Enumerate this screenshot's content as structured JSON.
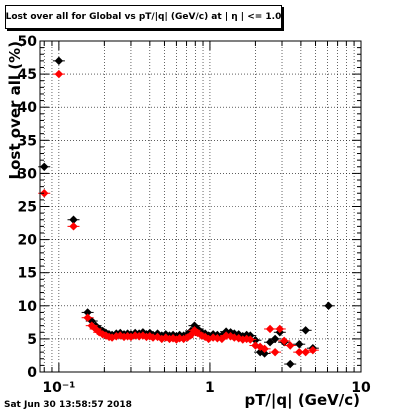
{
  "chart_data": {
    "type": "scatter",
    "title": "Lost over all for Global vs pT/|q| (GeV/c) at | η | <= 1.0",
    "xlabel": "pT/|q| (GeV/c)",
    "ylabel": "Lost over all (%)",
    "xscale": "log",
    "xlim": [
      0.075,
      10
    ],
    "ylim": [
      0,
      50
    ],
    "grid": true,
    "x_tick_labels": [
      "10⁻¹",
      "1",
      "10"
    ],
    "x_tick_values": [
      0.1,
      1,
      10
    ],
    "y_ticks": [
      0,
      5,
      10,
      15,
      20,
      25,
      30,
      35,
      40,
      45,
      50
    ],
    "series": [
      {
        "color": "#000000",
        "marker": "diamond",
        "points": [
          [
            0.08,
            31.0
          ],
          [
            0.1,
            47.0
          ],
          [
            0.125,
            23.0
          ],
          [
            0.155,
            9.0
          ],
          [
            0.165,
            7.7
          ],
          [
            0.175,
            7.0
          ],
          [
            0.185,
            6.5
          ],
          [
            0.195,
            6.2
          ],
          [
            0.205,
            5.9
          ],
          [
            0.215,
            5.7
          ],
          [
            0.225,
            5.6
          ],
          [
            0.24,
            5.8
          ],
          [
            0.255,
            5.9
          ],
          [
            0.27,
            5.7
          ],
          [
            0.285,
            5.8
          ],
          [
            0.3,
            5.7
          ],
          [
            0.32,
            5.9
          ],
          [
            0.34,
            5.8
          ],
          [
            0.36,
            6.0
          ],
          [
            0.38,
            5.7
          ],
          [
            0.4,
            5.9
          ],
          [
            0.42,
            5.6
          ],
          [
            0.45,
            5.8
          ],
          [
            0.48,
            5.5
          ],
          [
            0.51,
            5.7
          ],
          [
            0.54,
            5.5
          ],
          [
            0.57,
            5.6
          ],
          [
            0.6,
            5.4
          ],
          [
            0.63,
            5.6
          ],
          [
            0.67,
            5.5
          ],
          [
            0.71,
            5.7
          ],
          [
            0.75,
            6.2
          ],
          [
            0.79,
            7.0
          ],
          [
            0.83,
            6.5
          ],
          [
            0.88,
            6.0
          ],
          [
            0.93,
            5.8
          ],
          [
            0.98,
            5.5
          ],
          [
            1.05,
            5.7
          ],
          [
            1.12,
            5.6
          ],
          [
            1.2,
            5.5
          ],
          [
            1.28,
            6.1
          ],
          [
            1.37,
            6.0
          ],
          [
            1.45,
            5.8
          ],
          [
            1.55,
            5.7
          ],
          [
            1.65,
            5.4
          ],
          [
            1.75,
            5.6
          ],
          [
            1.85,
            5.5
          ],
          [
            2.0,
            4.8
          ],
          [
            2.15,
            3.0
          ],
          [
            2.3,
            2.8
          ],
          [
            2.5,
            4.5
          ],
          [
            2.7,
            5.0
          ],
          [
            2.9,
            6.0
          ],
          [
            3.1,
            4.5
          ],
          [
            3.4,
            1.2
          ],
          [
            3.9,
            4.2
          ],
          [
            4.3,
            6.3
          ],
          [
            4.8,
            3.6
          ],
          [
            6.1,
            10.0
          ]
        ]
      },
      {
        "color": "#ff0000",
        "marker": "diamond",
        "points": [
          [
            0.08,
            27.0
          ],
          [
            0.1,
            45.0
          ],
          [
            0.125,
            22.0
          ],
          [
            0.155,
            8.2
          ],
          [
            0.165,
            7.0
          ],
          [
            0.175,
            6.5
          ],
          [
            0.185,
            6.0
          ],
          [
            0.195,
            5.7
          ],
          [
            0.205,
            5.5
          ],
          [
            0.215,
            5.3
          ],
          [
            0.225,
            5.2
          ],
          [
            0.24,
            5.4
          ],
          [
            0.255,
            5.5
          ],
          [
            0.27,
            5.3
          ],
          [
            0.285,
            5.4
          ],
          [
            0.3,
            5.3
          ],
          [
            0.32,
            5.5
          ],
          [
            0.34,
            5.4
          ],
          [
            0.36,
            5.5
          ],
          [
            0.38,
            5.3
          ],
          [
            0.4,
            5.4
          ],
          [
            0.42,
            5.2
          ],
          [
            0.45,
            5.3
          ],
          [
            0.48,
            5.0
          ],
          [
            0.51,
            5.2
          ],
          [
            0.54,
            5.0
          ],
          [
            0.57,
            5.1
          ],
          [
            0.6,
            4.9
          ],
          [
            0.63,
            5.1
          ],
          [
            0.67,
            5.0
          ],
          [
            0.71,
            5.2
          ],
          [
            0.75,
            5.6
          ],
          [
            0.79,
            6.3
          ],
          [
            0.83,
            5.9
          ],
          [
            0.88,
            5.5
          ],
          [
            0.93,
            5.3
          ],
          [
            0.98,
            5.0
          ],
          [
            1.05,
            5.2
          ],
          [
            1.12,
            5.1
          ],
          [
            1.2,
            5.0
          ],
          [
            1.28,
            5.5
          ],
          [
            1.37,
            5.4
          ],
          [
            1.45,
            5.2
          ],
          [
            1.55,
            5.1
          ],
          [
            1.65,
            4.9
          ],
          [
            1.75,
            5.0
          ],
          [
            1.85,
            4.9
          ],
          [
            2.0,
            4.0
          ],
          [
            2.15,
            3.8
          ],
          [
            2.3,
            3.5
          ],
          [
            2.5,
            6.5
          ],
          [
            2.7,
            3.0
          ],
          [
            2.9,
            6.5
          ],
          [
            3.1,
            4.7
          ],
          [
            3.4,
            4.0
          ],
          [
            3.9,
            3.0
          ],
          [
            4.3,
            3.0
          ],
          [
            4.8,
            3.3
          ]
        ]
      }
    ]
  },
  "footer": {
    "timestamp": "Sat Jun 30 13:58:57 2018"
  }
}
